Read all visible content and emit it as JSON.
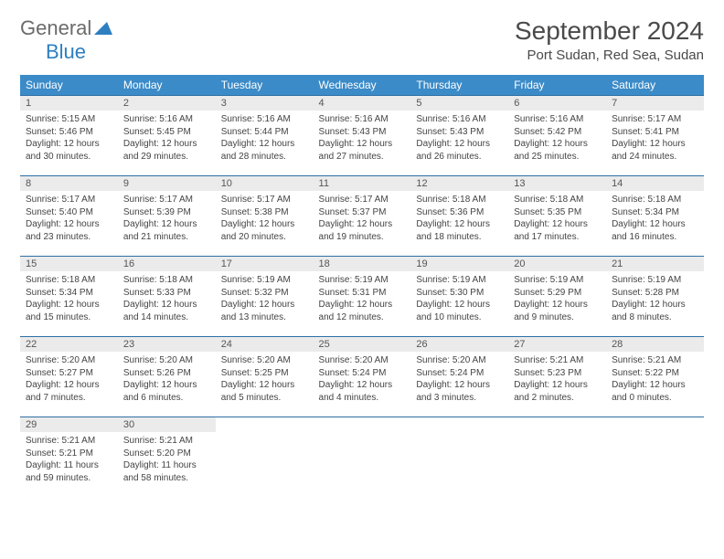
{
  "logo": {
    "part1": "General",
    "part2": "Blue"
  },
  "title": "September 2024",
  "location": "Port Sudan, Red Sea, Sudan",
  "colors": {
    "header_bg": "#3b8bc8",
    "header_text": "#ffffff",
    "row_border": "#2d6fa5",
    "daynum_bg": "#ebebeb",
    "logo_gray": "#6b6b6b",
    "logo_blue": "#2d7fc1"
  },
  "dayNames": [
    "Sunday",
    "Monday",
    "Tuesday",
    "Wednesday",
    "Thursday",
    "Friday",
    "Saturday"
  ],
  "weeks": [
    [
      {
        "n": "1",
        "sr": "5:15 AM",
        "ss": "5:46 PM",
        "dl": "12 hours and 30 minutes."
      },
      {
        "n": "2",
        "sr": "5:16 AM",
        "ss": "5:45 PM",
        "dl": "12 hours and 29 minutes."
      },
      {
        "n": "3",
        "sr": "5:16 AM",
        "ss": "5:44 PM",
        "dl": "12 hours and 28 minutes."
      },
      {
        "n": "4",
        "sr": "5:16 AM",
        "ss": "5:43 PM",
        "dl": "12 hours and 27 minutes."
      },
      {
        "n": "5",
        "sr": "5:16 AM",
        "ss": "5:43 PM",
        "dl": "12 hours and 26 minutes."
      },
      {
        "n": "6",
        "sr": "5:16 AM",
        "ss": "5:42 PM",
        "dl": "12 hours and 25 minutes."
      },
      {
        "n": "7",
        "sr": "5:17 AM",
        "ss": "5:41 PM",
        "dl": "12 hours and 24 minutes."
      }
    ],
    [
      {
        "n": "8",
        "sr": "5:17 AM",
        "ss": "5:40 PM",
        "dl": "12 hours and 23 minutes."
      },
      {
        "n": "9",
        "sr": "5:17 AM",
        "ss": "5:39 PM",
        "dl": "12 hours and 21 minutes."
      },
      {
        "n": "10",
        "sr": "5:17 AM",
        "ss": "5:38 PM",
        "dl": "12 hours and 20 minutes."
      },
      {
        "n": "11",
        "sr": "5:17 AM",
        "ss": "5:37 PM",
        "dl": "12 hours and 19 minutes."
      },
      {
        "n": "12",
        "sr": "5:18 AM",
        "ss": "5:36 PM",
        "dl": "12 hours and 18 minutes."
      },
      {
        "n": "13",
        "sr": "5:18 AM",
        "ss": "5:35 PM",
        "dl": "12 hours and 17 minutes."
      },
      {
        "n": "14",
        "sr": "5:18 AM",
        "ss": "5:34 PM",
        "dl": "12 hours and 16 minutes."
      }
    ],
    [
      {
        "n": "15",
        "sr": "5:18 AM",
        "ss": "5:34 PM",
        "dl": "12 hours and 15 minutes."
      },
      {
        "n": "16",
        "sr": "5:18 AM",
        "ss": "5:33 PM",
        "dl": "12 hours and 14 minutes."
      },
      {
        "n": "17",
        "sr": "5:19 AM",
        "ss": "5:32 PM",
        "dl": "12 hours and 13 minutes."
      },
      {
        "n": "18",
        "sr": "5:19 AM",
        "ss": "5:31 PM",
        "dl": "12 hours and 12 minutes."
      },
      {
        "n": "19",
        "sr": "5:19 AM",
        "ss": "5:30 PM",
        "dl": "12 hours and 10 minutes."
      },
      {
        "n": "20",
        "sr": "5:19 AM",
        "ss": "5:29 PM",
        "dl": "12 hours and 9 minutes."
      },
      {
        "n": "21",
        "sr": "5:19 AM",
        "ss": "5:28 PM",
        "dl": "12 hours and 8 minutes."
      }
    ],
    [
      {
        "n": "22",
        "sr": "5:20 AM",
        "ss": "5:27 PM",
        "dl": "12 hours and 7 minutes."
      },
      {
        "n": "23",
        "sr": "5:20 AM",
        "ss": "5:26 PM",
        "dl": "12 hours and 6 minutes."
      },
      {
        "n": "24",
        "sr": "5:20 AM",
        "ss": "5:25 PM",
        "dl": "12 hours and 5 minutes."
      },
      {
        "n": "25",
        "sr": "5:20 AM",
        "ss": "5:24 PM",
        "dl": "12 hours and 4 minutes."
      },
      {
        "n": "26",
        "sr": "5:20 AM",
        "ss": "5:24 PM",
        "dl": "12 hours and 3 minutes."
      },
      {
        "n": "27",
        "sr": "5:21 AM",
        "ss": "5:23 PM",
        "dl": "12 hours and 2 minutes."
      },
      {
        "n": "28",
        "sr": "5:21 AM",
        "ss": "5:22 PM",
        "dl": "12 hours and 0 minutes."
      }
    ],
    [
      {
        "n": "29",
        "sr": "5:21 AM",
        "ss": "5:21 PM",
        "dl": "11 hours and 59 minutes."
      },
      {
        "n": "30",
        "sr": "5:21 AM",
        "ss": "5:20 PM",
        "dl": "11 hours and 58 minutes."
      },
      null,
      null,
      null,
      null,
      null
    ]
  ],
  "labels": {
    "sunrise": "Sunrise:",
    "sunset": "Sunset:",
    "daylight": "Daylight:"
  }
}
